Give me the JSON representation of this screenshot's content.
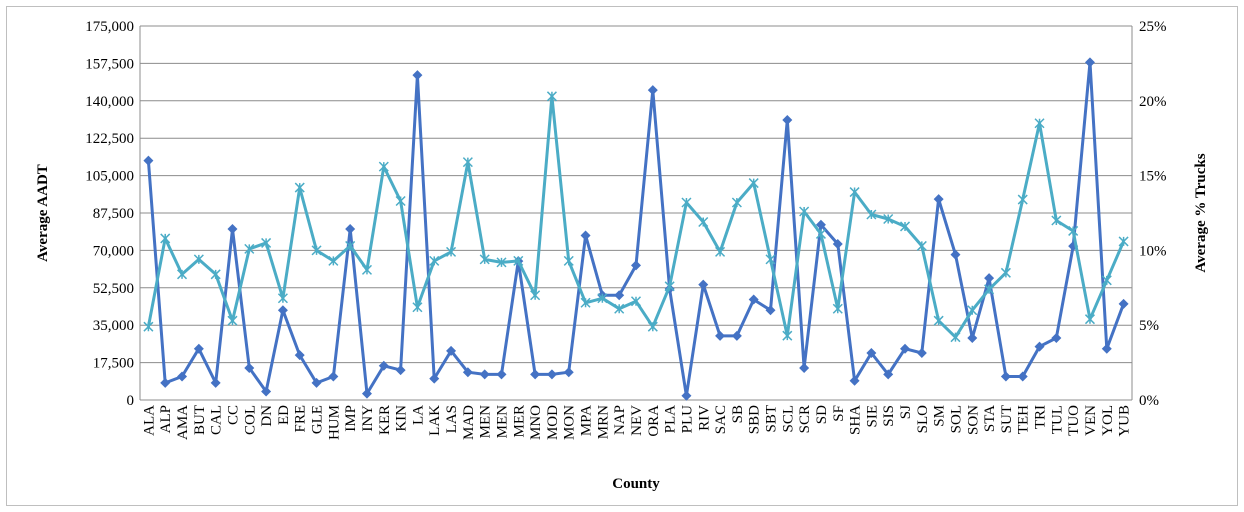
{
  "chart_data": {
    "type": "line",
    "xlabel": "County",
    "ylabel": "Average AADT",
    "y2label": "Average % Trucks",
    "ylim": [
      0,
      175000
    ],
    "y2lim": [
      0,
      25
    ],
    "y_ticks": [
      "0",
      "17,500",
      "35,000",
      "52,500",
      "70,000",
      "87,500",
      "105,000",
      "122,500",
      "140,000",
      "157,500",
      "175,000"
    ],
    "y2_ticks": [
      "0%",
      "5%",
      "10%",
      "15%",
      "20%",
      "25%"
    ],
    "grid": true,
    "legend": "none",
    "categories": [
      "ALA",
      "ALP",
      "AMA",
      "BUT",
      "CAL",
      "CC",
      "COL",
      "DN",
      "ED",
      "FRE",
      "GLE",
      "HUM",
      "IMP",
      "INY",
      "KER",
      "KIN",
      "LA",
      "LAK",
      "LAS",
      "MAD",
      "MEN",
      "MEN",
      "MER",
      "MNO",
      "MOD",
      "MON",
      "MPA",
      "MRN",
      "NAP",
      "NEV",
      "ORA",
      "PLA",
      "PLU",
      "RIV",
      "SAC",
      "SB",
      "SBD",
      "SBT",
      "SCL",
      "SCR",
      "SD",
      "SF",
      "SHA",
      "SIE",
      "SIS",
      "SJ",
      "SLO",
      "SM",
      "SOL",
      "SON",
      "STA",
      "SUT",
      "TEH",
      "TRI",
      "TUL",
      "TUO",
      "VEN",
      "YOL",
      "YUB"
    ],
    "series": [
      {
        "axis": "left",
        "color": "#4472c4",
        "marker": "diamond",
        "values": [
          112000,
          8000,
          11000,
          24000,
          8000,
          80000,
          15000,
          4000,
          42000,
          21000,
          8000,
          11000,
          80000,
          3000,
          16000,
          14000,
          152000,
          10000,
          23000,
          13000,
          12000,
          12000,
          65000,
          12000,
          12000,
          13000,
          77000,
          49000,
          49000,
          63000,
          145000,
          52000,
          2000,
          54000,
          30000,
          30000,
          47000,
          42000,
          131000,
          15000,
          82000,
          73000,
          9000,
          22000,
          12000,
          24000,
          22000,
          94000,
          68000,
          29000,
          57000,
          11000,
          11000,
          25000,
          29000,
          72000,
          158000,
          24000,
          45000
        ]
      },
      {
        "axis": "right",
        "color": "#4bacc6",
        "marker": "star",
        "values": [
          4.9,
          10.8,
          8.4,
          9.4,
          8.4,
          5.3,
          10.1,
          10.5,
          6.8,
          14.2,
          10.0,
          9.3,
          10.3,
          8.7,
          15.6,
          13.3,
          6.2,
          9.3,
          9.9,
          15.9,
          9.4,
          9.2,
          9.3,
          7.0,
          20.3,
          9.3,
          6.5,
          6.8,
          6.1,
          6.6,
          4.9,
          7.6,
          13.2,
          11.9,
          9.9,
          13.2,
          14.5,
          9.4,
          4.3,
          12.6,
          11.1,
          6.1,
          13.9,
          12.4,
          12.1,
          11.6,
          10.3,
          5.3,
          4.2,
          6.0,
          7.4,
          8.5,
          13.4,
          18.5,
          12.0,
          11.3,
          5.4,
          8.0,
          10.6
        ]
      }
    ]
  }
}
